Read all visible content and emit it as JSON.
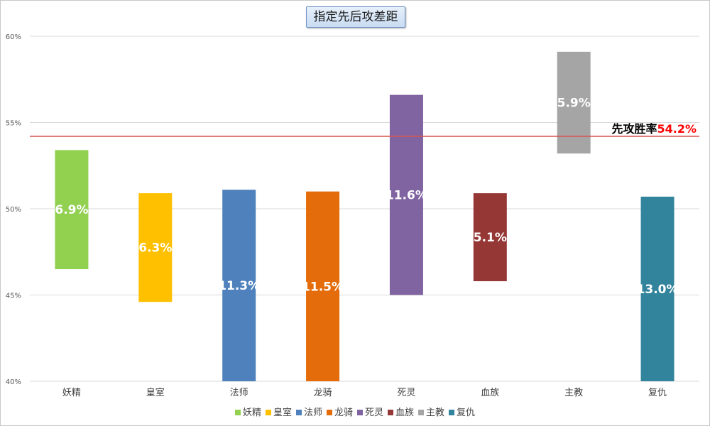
{
  "chart_data": {
    "type": "bar",
    "subtype": "floating-range",
    "title": "指定先后攻差距",
    "categories": [
      "妖精",
      "皇室",
      "法师",
      "龙骑",
      "死灵",
      "血族",
      "主教",
      "复仇"
    ],
    "low": [
      46.5,
      44.6,
      39.8,
      39.5,
      45.0,
      45.8,
      53.2,
      37.7
    ],
    "high": [
      53.4,
      50.9,
      51.1,
      51.0,
      56.6,
      50.9,
      59.1,
      50.7
    ],
    "labels": [
      "6.9%",
      "6.3%",
      "11.3%",
      "11.5%",
      "11.6%",
      "5.1%",
      "5.9%",
      "13.0%"
    ],
    "colors": [
      "#92d050",
      "#ffc000",
      "#4f81bd",
      "#e46c0a",
      "#8064a2",
      "#953735",
      "#a5a5a5",
      "#31849b"
    ],
    "ylim": [
      40,
      60
    ],
    "yticks": [
      "40%",
      "45%",
      "50%",
      "55%",
      "60%"
    ],
    "ytick_values": [
      40,
      45,
      50,
      55,
      60
    ],
    "grid": true,
    "legend_position": "bottom",
    "reference_line": {
      "value": 54.2,
      "label_prefix": "先攻胜率",
      "label_value": "54.2%",
      "color": "#d9534f"
    }
  }
}
